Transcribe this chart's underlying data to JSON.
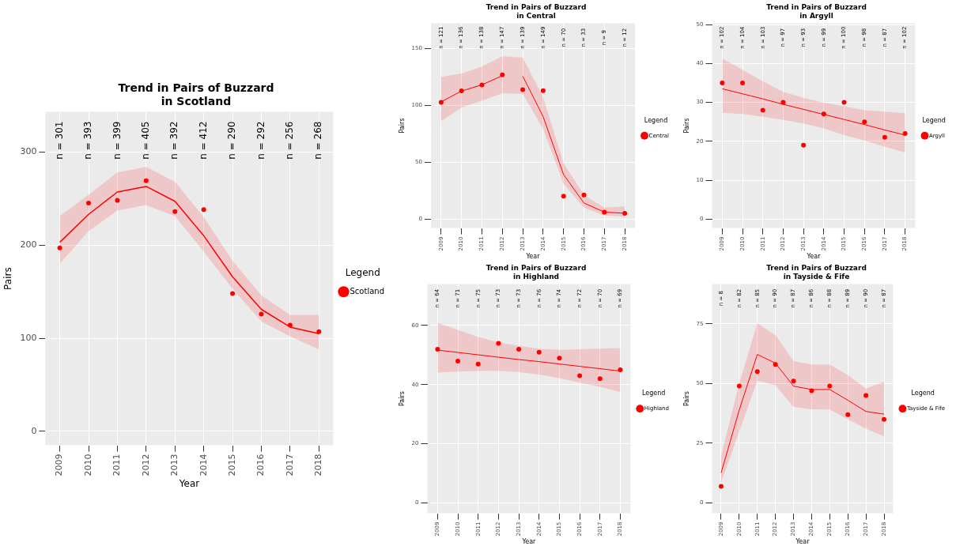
{
  "chart_data": [
    {
      "type": "line",
      "title": "Trend in Pairs of Buzzard\nin Scotland",
      "xlabel": "Year",
      "ylabel": "Pairs",
      "legend_title": "Legend",
      "legend": "right",
      "grid": true,
      "categories": [
        "2009",
        "2010",
        "2011",
        "2012",
        "2013",
        "2014",
        "2015",
        "2016",
        "2017",
        "2018"
      ],
      "ylim": [
        -15,
        343
      ],
      "yticks": [
        0,
        100,
        200,
        300
      ],
      "series": [
        {
          "name": "Scotland",
          "type": "scatter",
          "marker": "circle",
          "color": "#ff0000",
          "values": [
            197,
            245,
            248,
            269,
            236,
            238,
            148,
            126,
            114,
            107
          ]
        },
        {
          "type": "line",
          "marker": "none",
          "line_style": "solid",
          "color": "#ff0000",
          "values": [
            203,
            233,
            257,
            263,
            247,
            210,
            166,
            131,
            112,
            105
          ],
          "lower": [
            180,
            215,
            237,
            243,
            231,
            193,
            153,
            118,
            102,
            88
          ],
          "upper": [
            231,
            254,
            278,
            284,
            268,
            230,
            183,
            146,
            125,
            125
          ]
        }
      ],
      "annotations": [
        "n = 301",
        "n = 393",
        "n = 399",
        "n = 405",
        "n = 392",
        "n = 412",
        "n = 290",
        "n = 292",
        "n = 256",
        "n = 268"
      ]
    },
    {
      "type": "line",
      "title": "Trend in Pairs of Buzzard\nin Central",
      "xlabel": "Year",
      "ylabel": "Pairs",
      "legend_title": "Legend",
      "legend": "right",
      "grid": true,
      "categories": [
        "2009",
        "2010",
        "2011",
        "2012",
        "2013",
        "2014",
        "2015",
        "2016",
        "2017",
        "2018"
      ],
      "ylim": [
        -8,
        172
      ],
      "yticks": [
        0,
        50,
        100,
        150
      ],
      "series": [
        {
          "name": "Central",
          "type": "scatter",
          "marker": "circle",
          "color": "#ff0000",
          "values": [
            102.6,
            112.7,
            117.8,
            126.8,
            113.7,
            112.9,
            20,
            21,
            6,
            5
          ]
        },
        {
          "type": "line",
          "marker": "none",
          "line_style": "solid",
          "color": "#ff0000",
          "values": [
            103,
            112.5,
            118,
            126,
            null,
            null,
            null,
            null,
            null,
            null
          ],
          "lower": [
            86,
            98,
            104,
            110.5,
            null,
            null,
            null,
            null,
            null,
            null
          ],
          "upper": [
            125,
            128,
            134,
            143,
            null,
            null,
            null,
            null,
            null,
            null
          ]
        },
        {
          "type": "line",
          "marker": "none",
          "line_style": "solid",
          "color": "#ff0000",
          "values": [
            null,
            null,
            null,
            null,
            125.5,
            90,
            39,
            14,
            6,
            5
          ],
          "lower": [
            null,
            null,
            null,
            110.5,
            110,
            79,
            31,
            10,
            3,
            2
          ],
          "upper": [
            null,
            null,
            null,
            143,
            142,
            107,
            49,
            21,
            10,
            11
          ]
        }
      ],
      "annotations": [
        "n = 121",
        "n = 136",
        "n = 138",
        "n = 147",
        "n = 139",
        "n = 149",
        "n = 70",
        "n = 33",
        "n = 9",
        "n = 12"
      ]
    },
    {
      "type": "line",
      "title": "Trend in Pairs of Buzzard\nin Argyll",
      "xlabel": "Year",
      "ylabel": "Pairs",
      "legend_title": "Legend",
      "legend": "right",
      "grid": true,
      "categories": [
        "2009",
        "2010",
        "2011",
        "2012",
        "2013",
        "2014",
        "2015",
        "2016",
        "2017",
        "2018"
      ],
      "ylim": [
        -2.3,
        50.3
      ],
      "yticks": [
        0,
        10,
        20,
        30,
        40,
        50
      ],
      "series": [
        {
          "name": "Argyll",
          "type": "scatter",
          "marker": "circle",
          "color": "#ff0000",
          "values": [
            35,
            35,
            28,
            30,
            19,
            27,
            30,
            25,
            21,
            22
          ]
        },
        {
          "type": "line",
          "marker": "none",
          "line_style": "solid",
          "color": "#ff0000",
          "values": [
            33.5,
            32.2,
            30.9,
            29.5,
            28.2,
            26.9,
            25.6,
            24.3,
            22.9,
            21.6
          ],
          "lower": [
            27.3,
            27,
            26.3,
            25.5,
            24.6,
            23.3,
            21.6,
            20.2,
            18.6,
            17.1
          ],
          "upper": [
            41.3,
            38.4,
            35.4,
            32.7,
            31.2,
            29.9,
            29,
            28,
            27.6,
            27.2
          ]
        }
      ],
      "annotations": [
        "n = 102",
        "n = 104",
        "n = 103",
        "n = 97",
        "n = 93",
        "n = 99",
        "n = 100",
        "n = 98",
        "n = 87",
        "n = 102"
      ]
    },
    {
      "type": "line",
      "title": "Trend in Pairs of Buzzard\nin Highland",
      "xlabel": "Year",
      "ylabel": "Pairs",
      "legend_title": "Legend",
      "legend": "right",
      "grid": true,
      "categories": [
        "2009",
        "2010",
        "2011",
        "2012",
        "2013",
        "2014",
        "2015",
        "2016",
        "2017",
        "2018"
      ],
      "ylim": [
        -3.5,
        74
      ],
      "yticks": [
        0,
        20,
        40,
        60
      ],
      "series": [
        {
          "name": "Highland",
          "type": "scatter",
          "marker": "circle",
          "color": "#ff0000",
          "values": [
            52,
            48,
            47,
            54,
            52,
            51,
            49,
            43,
            42,
            45
          ]
        },
        {
          "type": "line",
          "marker": "none",
          "line_style": "solid",
          "color": "#ff0000",
          "values": [
            51.7,
            50.9,
            50.1,
            49.3,
            48.5,
            47.8,
            47,
            46.2,
            45.4,
            44.6
          ],
          "lower": [
            44.1,
            44.4,
            44.6,
            44.7,
            44.2,
            43.4,
            42.2,
            40.6,
            39.3,
            37.5
          ],
          "upper": [
            60.9,
            58.5,
            56.1,
            54.3,
            53.1,
            52.2,
            51.8,
            52,
            52.2,
            52.4
          ]
        }
      ],
      "annotations": [
        "n = 64",
        "n = 71",
        "n = 75",
        "n = 73",
        "n = 73",
        "n = 76",
        "n = 74",
        "n = 72",
        "n = 70",
        "n = 69"
      ]
    },
    {
      "type": "line",
      "title": "Trend in Pairs of Buzzard\nin Tayside & Fife",
      "xlabel": "Year",
      "ylabel": "Pairs",
      "legend_title": "Legend",
      "legend": "right",
      "grid": true,
      "categories": [
        "2009",
        "2010",
        "2011",
        "2012",
        "2013",
        "2014",
        "2015",
        "2016",
        "2017",
        "2018"
      ],
      "ylim": [
        -4.3,
        91.6
      ],
      "yticks": [
        0,
        25,
        50,
        75
      ],
      "series": [
        {
          "name": "Tayside & Fife",
          "type": "scatter",
          "marker": "circle",
          "color": "#ff0000",
          "values": [
            7,
            49,
            55,
            58,
            51,
            47,
            49,
            37,
            45,
            35
          ]
        },
        {
          "type": "line",
          "marker": "none",
          "line_style": "solid",
          "color": "#ff0000",
          "values": [
            12.6,
            38.9,
            62.2,
            58.5,
            48.9,
            47.5,
            47.5,
            43,
            38.3,
            37.2
          ],
          "lower": [
            8.6,
            29.9,
            51.2,
            49.3,
            40.2,
            39.2,
            39.1,
            35,
            31.1,
            27.9
          ],
          "upper": [
            19.8,
            50,
            75.3,
            70.3,
            59.4,
            58,
            58,
            53.5,
            47.9,
            50.7
          ]
        }
      ],
      "annotations": [
        "n = 8",
        "n = 82",
        "n = 85",
        "n = 90",
        "n = 87",
        "n = 86",
        "n = 88",
        "n = 89",
        "n = 90",
        "n = 87"
      ]
    }
  ]
}
